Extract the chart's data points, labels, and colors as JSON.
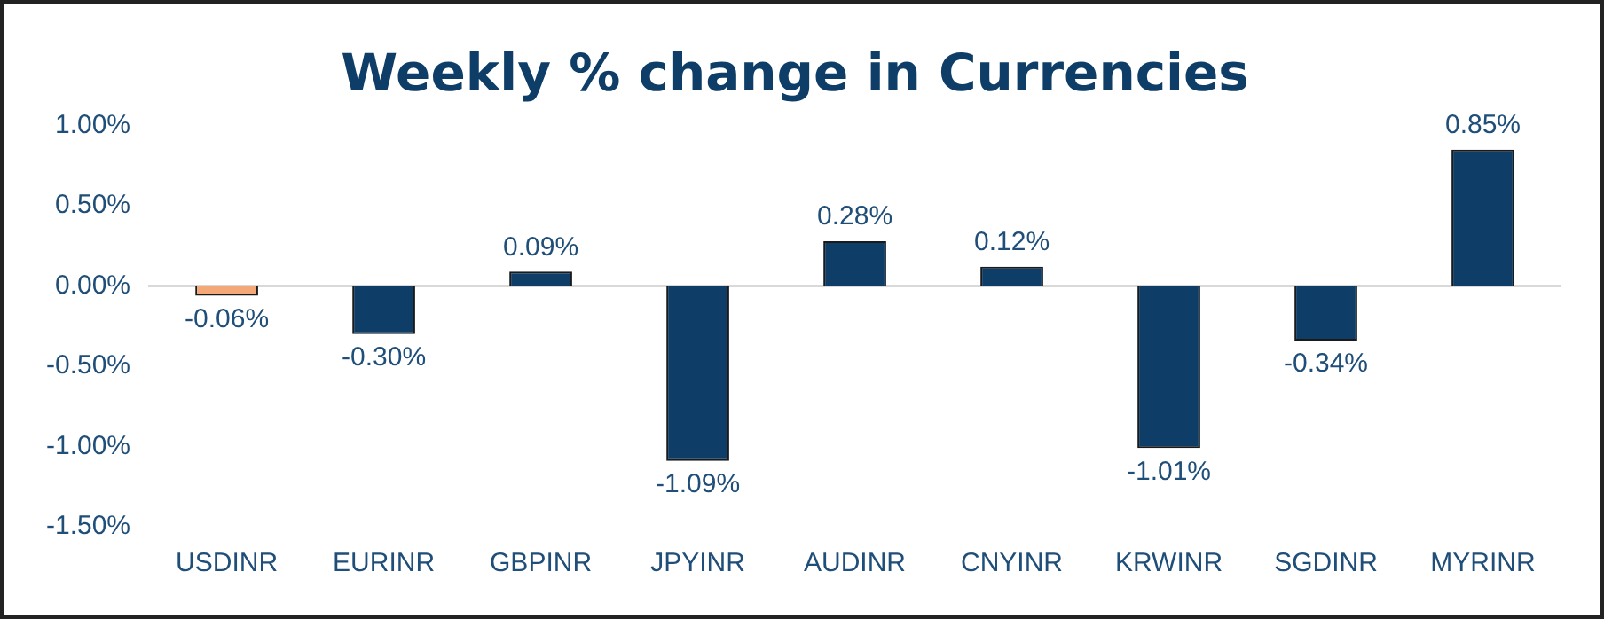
{
  "chart_data": {
    "type": "bar",
    "title": "Weekly % change in Currencies",
    "categories": [
      "USDINR",
      "EURINR",
      "GBPINR",
      "JPYINR",
      "AUDINR",
      "CNYINR",
      "KRWINR",
      "SGDINR",
      "MYRINR"
    ],
    "values": [
      -0.06,
      -0.3,
      0.09,
      -1.09,
      0.28,
      0.12,
      -1.01,
      -0.34,
      0.85
    ],
    "colors": [
      "#f4a878",
      "#0e3e68",
      "#0e3e68",
      "#0e3e68",
      "#0e3e68",
      "#0e3e68",
      "#0e3e68",
      "#0e3e68",
      "#0e3e68"
    ],
    "value_labels": [
      "-0.06%",
      "-0.30%",
      "0.09%",
      "-1.09%",
      "0.28%",
      "0.12%",
      "-1.01%",
      "-0.34%",
      "0.85%"
    ],
    "ylim": [
      -1.5,
      1.0
    ],
    "yticks": [
      {
        "value": -1.5,
        "label": "-1.50%"
      },
      {
        "value": -1,
        "label": "-1.00%"
      },
      {
        "value": -0.5,
        "label": "-0.50%"
      },
      {
        "value": 0,
        "label": "0.00%"
      },
      {
        "value": 0.5,
        "label": "0.50%"
      },
      {
        "value": 1,
        "label": "1.00%"
      }
    ],
    "ref_lines": [
      {
        "axis": "y",
        "value": 0,
        "color": "#d9d9d9"
      }
    ],
    "grid": false,
    "legend": false
  }
}
